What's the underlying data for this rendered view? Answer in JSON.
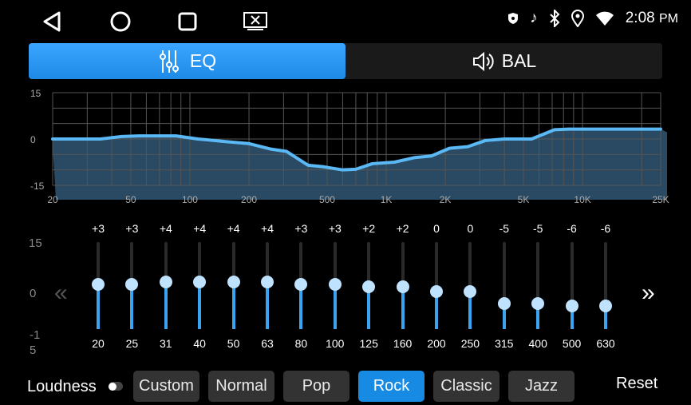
{
  "status": {
    "time": "2:08",
    "ampm": "PM"
  },
  "tabs": [
    {
      "label": "EQ",
      "icon": "equalizer-icon",
      "active": true
    },
    {
      "label": "BAL",
      "icon": "speaker-icon",
      "active": false
    }
  ],
  "chart_data": {
    "type": "area",
    "x_scale": "log",
    "xlim": [
      20,
      25000
    ],
    "ylim": [
      -15,
      15
    ],
    "y_ticks": [
      "15",
      "0",
      "-15"
    ],
    "x_ticks": [
      {
        "v": 20,
        "label": "20"
      },
      {
        "v": 50,
        "label": "50"
      },
      {
        "v": 100,
        "label": "100"
      },
      {
        "v": 200,
        "label": "200"
      },
      {
        "v": 500,
        "label": "500"
      },
      {
        "v": 1000,
        "label": "1K"
      },
      {
        "v": 2000,
        "label": "2K"
      },
      {
        "v": 5000,
        "label": "5K"
      },
      {
        "v": 10000,
        "label": "10K"
      },
      {
        "v": 25000,
        "label": "25K"
      }
    ],
    "grid": true,
    "line_color": "#5ab8f5",
    "fill_color": "#2a4a63",
    "points": [
      [
        20,
        0
      ],
      [
        35,
        0
      ],
      [
        45,
        0.8
      ],
      [
        55,
        1
      ],
      [
        85,
        1
      ],
      [
        110,
        0
      ],
      [
        150,
        -0.8
      ],
      [
        200,
        -1.5
      ],
      [
        260,
        -3.3
      ],
      [
        310,
        -4
      ],
      [
        400,
        -8.5
      ],
      [
        480,
        -9
      ],
      [
        600,
        -10
      ],
      [
        700,
        -9.8
      ],
      [
        850,
        -8
      ],
      [
        1100,
        -7.5
      ],
      [
        1400,
        -6
      ],
      [
        1700,
        -5.5
      ],
      [
        2100,
        -3
      ],
      [
        2600,
        -2.5
      ],
      [
        3200,
        -0.5
      ],
      [
        4000,
        0
      ],
      [
        5500,
        0
      ],
      [
        7200,
        3
      ],
      [
        8500,
        3.2
      ],
      [
        25000,
        3.2
      ]
    ]
  },
  "scale": {
    "top": "15",
    "mid": "0",
    "bottom_line1": "-1",
    "bottom_line2": "5"
  },
  "bands": [
    {
      "freq": "20",
      "label": "+3",
      "value": 3
    },
    {
      "freq": "25",
      "label": "+3",
      "value": 3
    },
    {
      "freq": "31",
      "label": "+4",
      "value": 4
    },
    {
      "freq": "40",
      "label": "+4",
      "value": 4
    },
    {
      "freq": "50",
      "label": "+4",
      "value": 4
    },
    {
      "freq": "63",
      "label": "+4",
      "value": 4
    },
    {
      "freq": "80",
      "label": "+3",
      "value": 3
    },
    {
      "freq": "100",
      "label": "+3",
      "value": 3
    },
    {
      "freq": "125",
      "label": "+2",
      "value": 2
    },
    {
      "freq": "160",
      "label": "+2",
      "value": 2
    },
    {
      "freq": "200",
      "label": "0",
      "value": 0
    },
    {
      "freq": "250",
      "label": "0",
      "value": 0
    },
    {
      "freq": "315",
      "label": "-5",
      "value": -5
    },
    {
      "freq": "400",
      "label": "-5",
      "value": -5
    },
    {
      "freq": "500",
      "label": "-6",
      "value": -6
    },
    {
      "freq": "630",
      "label": "-6",
      "value": -6
    }
  ],
  "arrows": {
    "prev": "«",
    "next": "»"
  },
  "loudness": {
    "label": "Loudness",
    "on": false
  },
  "presets": [
    {
      "label": "Custom"
    },
    {
      "label": "Normal"
    },
    {
      "label": "Pop"
    },
    {
      "label": "Rock",
      "active": true
    },
    {
      "label": "Classic"
    },
    {
      "label": "Jazz"
    }
  ],
  "reset_label": "Reset",
  "accent": "#1f8ae6"
}
